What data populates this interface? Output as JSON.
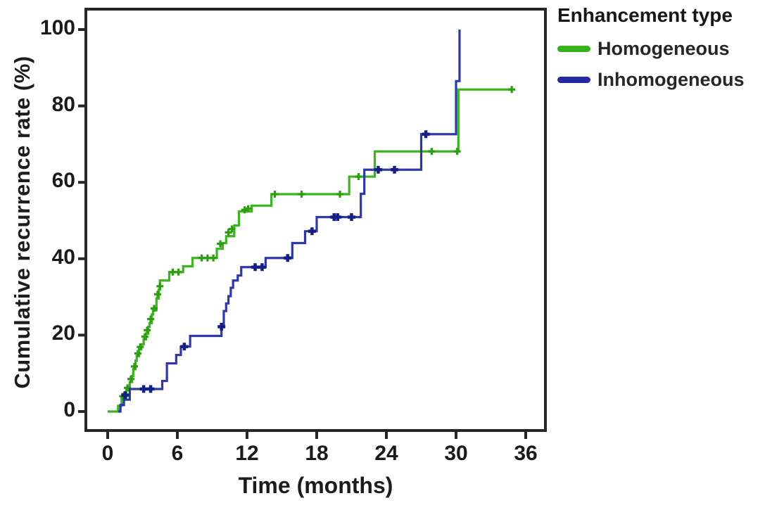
{
  "figure": {
    "y_axis": {
      "title": "Cumulative recurrence rate (%)",
      "ticks": [
        0,
        20,
        40,
        60,
        80,
        100
      ]
    },
    "x_axis": {
      "title": "Time (months)",
      "ticks": [
        0,
        6,
        12,
        18,
        24,
        30,
        36
      ]
    },
    "legend": {
      "title": "Enhancement type",
      "items": [
        {
          "label": "Homogeneous",
          "color": "#35b31b"
        },
        {
          "label": "Inhomogeneous",
          "color": "#2429a6"
        }
      ]
    }
  },
  "chart_data": {
    "type": "line",
    "subtype": "kaplan-meier-step-cumulative-incidence",
    "title": "",
    "xlabel": "Time (months)",
    "ylabel": "Cumulative recurrence rate (%)",
    "xlim": [
      0,
      37.7
    ],
    "ylim": [
      0,
      105
    ],
    "x_ticks": [
      0,
      6,
      12,
      18,
      24,
      30,
      36
    ],
    "y_ticks": [
      0,
      20,
      40,
      60,
      80,
      100
    ],
    "grid": false,
    "legend_position": "right-top",
    "legend_title": "Enhancement type",
    "series": [
      {
        "name": "Homogeneous",
        "color": "#3ab51e",
        "censor_color": "#2a9e0e",
        "steps": [
          [
            0,
            0
          ],
          [
            0.9,
            1.5
          ],
          [
            1.2,
            3.7
          ],
          [
            1.6,
            5.6
          ],
          [
            1.9,
            7.7
          ],
          [
            2.1,
            9.3
          ],
          [
            2.2,
            11.1
          ],
          [
            2.4,
            13.3
          ],
          [
            2.5,
            14.5
          ],
          [
            2.7,
            16.3
          ],
          [
            2.9,
            17.6
          ],
          [
            3.1,
            18.9
          ],
          [
            3.3,
            20.4
          ],
          [
            3.5,
            22.2
          ],
          [
            3.6,
            23.1
          ],
          [
            3.8,
            25.4
          ],
          [
            3.9,
            26.5
          ],
          [
            4.2,
            29.6
          ],
          [
            4.4,
            31.9
          ],
          [
            4.5,
            34.3
          ],
          [
            5.3,
            36.5
          ],
          [
            6.5,
            38.0
          ],
          [
            7.3,
            40.2
          ],
          [
            9.4,
            42.6
          ],
          [
            9.9,
            44.1
          ],
          [
            10.2,
            45.9
          ],
          [
            10.9,
            48.7
          ],
          [
            11.3,
            52.4
          ],
          [
            12.4,
            53.9
          ],
          [
            14.1,
            56.9
          ],
          [
            20.8,
            61.5
          ],
          [
            23.0,
            68.1
          ],
          [
            30.2,
            84.3
          ],
          [
            34.9,
            84.3
          ]
        ],
        "censors": [
          [
            1.3,
            4.0
          ],
          [
            1.7,
            6.2
          ],
          [
            2.0,
            8.5
          ],
          [
            2.3,
            11.8
          ],
          [
            2.6,
            15.2
          ],
          [
            2.8,
            16.9
          ],
          [
            3.2,
            19.6
          ],
          [
            3.4,
            21.3
          ],
          [
            3.7,
            24.2
          ],
          [
            4.0,
            27.0
          ],
          [
            4.3,
            30.7
          ],
          [
            4.5,
            32.8
          ],
          [
            5.6,
            36.5
          ],
          [
            6.1,
            36.5
          ],
          [
            8.1,
            40.2
          ],
          [
            8.6,
            40.2
          ],
          [
            9.1,
            40.2
          ],
          [
            9.7,
            43.9
          ],
          [
            10.4,
            46.9
          ],
          [
            10.7,
            47.8
          ],
          [
            11.8,
            52.8
          ],
          [
            12.1,
            53.1
          ],
          [
            14.4,
            56.9
          ],
          [
            16.7,
            56.9
          ],
          [
            20.0,
            56.9
          ],
          [
            21.6,
            61.5
          ],
          [
            27.9,
            68.1
          ],
          [
            30.1,
            68.1
          ],
          [
            34.8,
            84.3
          ]
        ]
      },
      {
        "name": "Inhomogeneous",
        "color": "#2f37af",
        "censor_color": "#141f86",
        "steps": [
          [
            0.9,
            0
          ],
          [
            1.1,
            1.7
          ],
          [
            1.4,
            3.1
          ],
          [
            1.9,
            5.9
          ],
          [
            4.7,
            8.0
          ],
          [
            5.1,
            12.6
          ],
          [
            5.9,
            14.8
          ],
          [
            6.3,
            17.0
          ],
          [
            7.1,
            19.8
          ],
          [
            9.8,
            22.2
          ],
          [
            10.0,
            26.3
          ],
          [
            10.2,
            28.3
          ],
          [
            10.4,
            30.2
          ],
          [
            10.6,
            32.4
          ],
          [
            10.8,
            34.3
          ],
          [
            11.2,
            35.6
          ],
          [
            11.5,
            37.8
          ],
          [
            13.6,
            40.2
          ],
          [
            15.9,
            44.1
          ],
          [
            17.0,
            47.2
          ],
          [
            18.0,
            50.9
          ],
          [
            21.8,
            57.0
          ],
          [
            22.1,
            63.3
          ],
          [
            27.0,
            72.6
          ],
          [
            30.0,
            86.5
          ],
          [
            30.3,
            100.0
          ]
        ],
        "censors": [
          [
            1.5,
            4.3
          ],
          [
            3.1,
            5.9
          ],
          [
            3.7,
            5.9
          ],
          [
            6.6,
            17.0
          ],
          [
            9.8,
            22.2
          ],
          [
            12.7,
            37.8
          ],
          [
            13.3,
            37.8
          ],
          [
            15.5,
            40.2
          ],
          [
            17.6,
            47.2
          ],
          [
            19.5,
            50.9
          ],
          [
            19.8,
            50.9
          ],
          [
            21.0,
            50.9
          ],
          [
            23.3,
            63.3
          ],
          [
            24.7,
            63.3
          ],
          [
            27.4,
            72.6
          ]
        ]
      }
    ]
  }
}
